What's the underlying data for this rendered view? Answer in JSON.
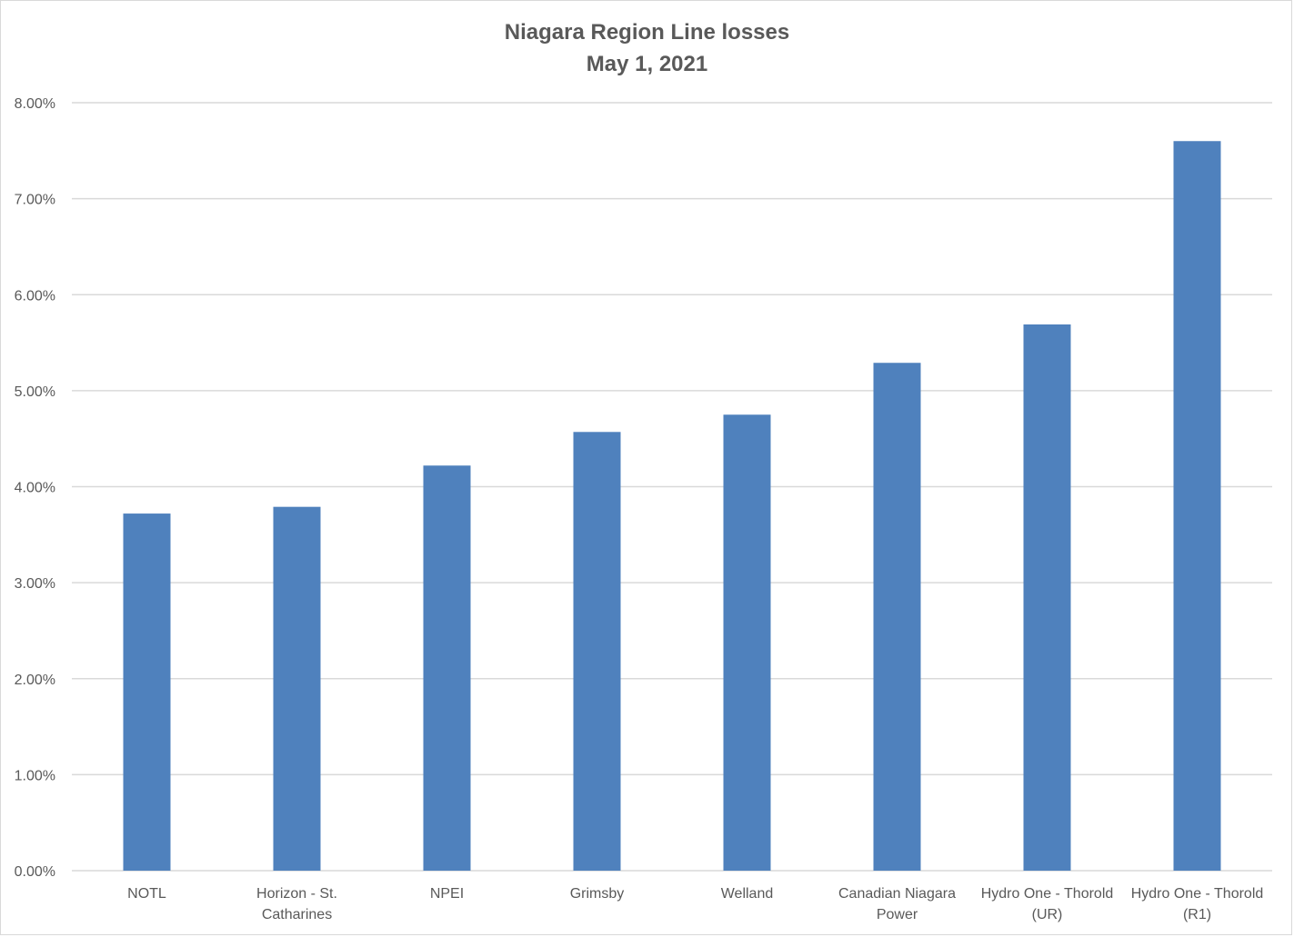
{
  "chart_data": {
    "type": "bar",
    "title": "Niagara Region Line losses",
    "subtitle": "May 1, 2021",
    "xlabel": "",
    "ylabel": "",
    "categories": [
      [
        "NOTL"
      ],
      [
        "Horizon - St.",
        "Catharines"
      ],
      [
        "NPEI"
      ],
      [
        "Grimsby"
      ],
      [
        "Welland"
      ],
      [
        "Canadian Niagara",
        "Power"
      ],
      [
        "Hydro One - Thorold",
        "(UR)"
      ],
      [
        "Hydro One - Thorold",
        "(R1)"
      ]
    ],
    "values": [
      3.72,
      3.79,
      4.22,
      4.57,
      4.75,
      5.29,
      5.69,
      7.6
    ],
    "value_unit": "%",
    "ylim": [
      0,
      8
    ],
    "yticks": [
      "0.00%",
      "1.00%",
      "2.00%",
      "3.00%",
      "4.00%",
      "5.00%",
      "6.00%",
      "7.00%",
      "8.00%"
    ],
    "grid": true,
    "legend": "none",
    "bar_color": "#4F81BD",
    "grid_color": "#d9d9d9",
    "text_color": "#595959"
  }
}
